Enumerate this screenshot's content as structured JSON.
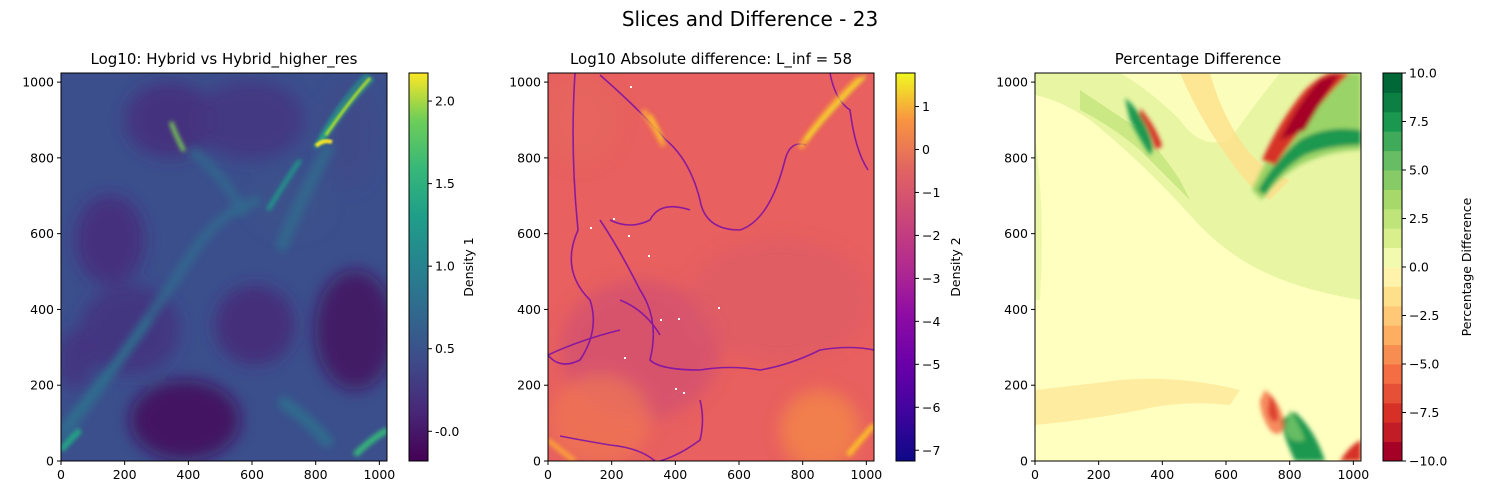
{
  "figure_title": "Slices and Difference - 23",
  "chart_data": [
    {
      "type": "heatmap",
      "title": "Log10: Hybrid vs Hybrid_higher_res",
      "xlabel": "",
      "ylabel": "",
      "xlim": [
        0,
        1024
      ],
      "ylim": [
        0,
        1024
      ],
      "xticks": [
        0,
        200,
        400,
        600,
        800,
        1000
      ],
      "yticks": [
        0,
        200,
        400,
        600,
        800,
        1000
      ],
      "colormap": "viridis",
      "colorbar": {
        "label": "Density 1",
        "range": [
          -0.18,
          2.17
        ],
        "ticks": [
          "-0.0",
          "0.5",
          "1.0",
          "1.5",
          "2.0"
        ],
        "tick_values": [
          0,
          0.5,
          1.0,
          1.5,
          2.0
        ]
      }
    },
    {
      "type": "heatmap",
      "title": "Log10 Absolute difference: L_inf = 58",
      "xlabel": "",
      "ylabel": "",
      "xlim": [
        0,
        1024
      ],
      "ylim": [
        0,
        1024
      ],
      "xticks": [
        0,
        200,
        400,
        600,
        800,
        1000
      ],
      "yticks": [
        0,
        200,
        400,
        600,
        800,
        1000
      ],
      "colormap": "plasma",
      "colorbar": {
        "label": "Density 2",
        "range": [
          -7.25,
          1.78
        ],
        "ticks": [
          "1",
          "0",
          "−1",
          "−2",
          "−3",
          "−4",
          "−5",
          "−6",
          "−7"
        ],
        "tick_values": [
          1,
          0,
          -1,
          -2,
          -3,
          -4,
          -5,
          -6,
          -7
        ]
      }
    },
    {
      "type": "heatmap",
      "title": "Percentage Difference",
      "xlabel": "",
      "ylabel": "",
      "xlim": [
        0,
        1024
      ],
      "ylim": [
        0,
        1024
      ],
      "xticks": [
        0,
        200,
        400,
        600,
        800,
        1000
      ],
      "yticks": [
        0,
        200,
        400,
        600,
        800,
        1000
      ],
      "colormap": "RdYlGn",
      "colorbar": {
        "label": "Percentage Difference",
        "range": [
          -10,
          10
        ],
        "ticks": [
          "10.0",
          "7.5",
          "5.0",
          "2.5",
          "0.0",
          "−2.5",
          "−5.0",
          "−7.5",
          "−10.0"
        ],
        "tick_values": [
          10,
          7.5,
          5,
          2.5,
          0,
          -2.5,
          -5,
          -7.5,
          -10
        ]
      }
    }
  ]
}
